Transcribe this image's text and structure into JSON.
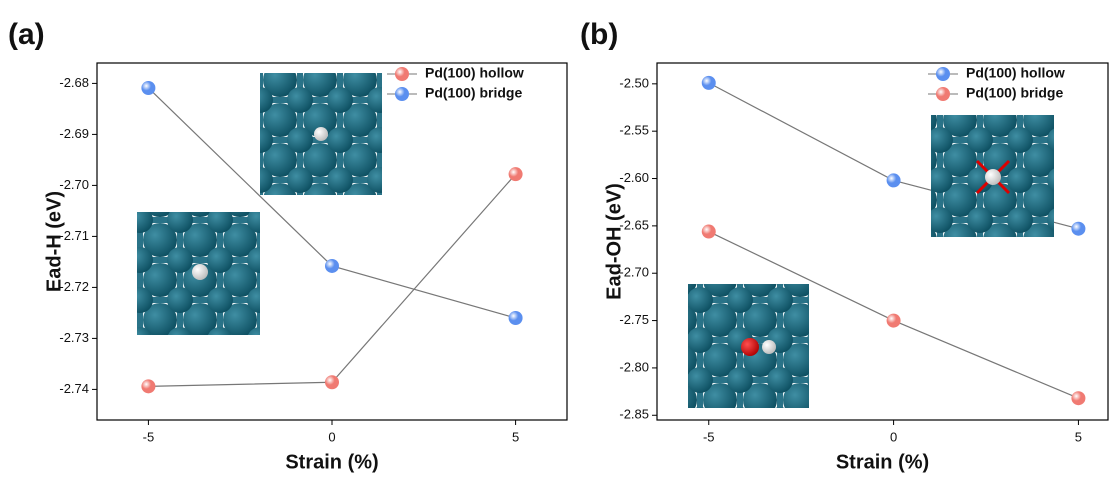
{
  "chart_data": [
    {
      "type": "line",
      "label": "(a)",
      "x_label": "Strain (%)",
      "y_label": "Ead-H (eV)",
      "x": [
        -5,
        0,
        5
      ],
      "xlim": [
        -6.4,
        6.4
      ],
      "xticks": [
        -5,
        0,
        5
      ],
      "ylim": [
        -2.746,
        -2.676
      ],
      "yticks": [
        -2.68,
        -2.69,
        {
          "value": -2.7,
          "label": "-2.70"
        },
        -2.71,
        -2.72,
        -2.73,
        -2.74
      ],
      "legend": "upper right",
      "series": [
        {
          "name": "Pd(100) hollow",
          "color": "#f07a72",
          "values": [
            -2.7394,
            -2.7386,
            -2.6978
          ]
        },
        {
          "name": "Pd(100) bridge",
          "color": "#5b8fef",
          "values": [
            -2.6809,
            -2.7158,
            -2.726
          ]
        }
      ]
    },
    {
      "type": "line",
      "label": "(b)",
      "x_label": "Strain (%)",
      "y_label": "Ead-OH (eV)",
      "x": [
        -5,
        0,
        5
      ],
      "xlim": [
        -6.4,
        5.8
      ],
      "xticks": [
        -5,
        0,
        5
      ],
      "ylim": [
        -2.855,
        -2.478
      ],
      "yticks": [
        {
          "value": -2.5,
          "label": "-2.50"
        },
        -2.55,
        {
          "value": -2.6,
          "label": "-2.60"
        },
        -2.65,
        {
          "value": -2.7,
          "label": "-2.70"
        },
        -2.75,
        {
          "value": -2.8,
          "label": "-2.80"
        },
        -2.85
      ],
      "legend": "upper right",
      "series": [
        {
          "name": "Pd(100) hollow",
          "color": "#5b8fef",
          "values": [
            -2.499,
            -2.602,
            -2.653
          ]
        },
        {
          "name": "Pd(100) bridge",
          "color": "#f07a72",
          "values": [
            -2.656,
            -2.75,
            -2.832
          ]
        }
      ]
    }
  ]
}
